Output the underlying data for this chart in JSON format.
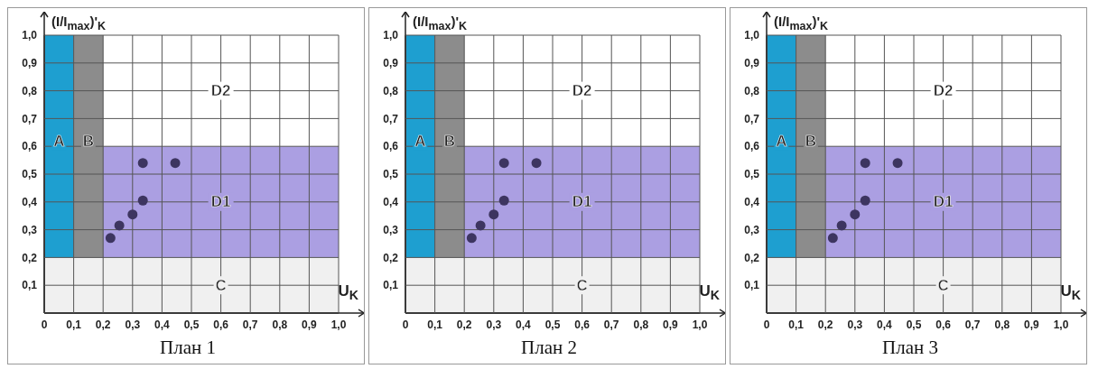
{
  "chart_data": [
    {
      "type": "scatter",
      "title": "План 1",
      "xlabel": "U$_{K}$",
      "ylabel": "(I/I$_{max}$)'$_{K}$",
      "x": [
        0.225,
        0.255,
        0.3,
        0.335,
        0.335,
        0.445
      ],
      "series": [
        {
          "color": "#3d3560",
          "values": [
            0.27,
            0.315,
            0.355,
            0.405,
            0.54,
            0.54
          ]
        }
      ],
      "marker": "circle",
      "xlim": [
        0,
        1
      ],
      "ylim": [
        0,
        1
      ],
      "xticks": [
        {
          "value": 0,
          "label": "0"
        },
        {
          "value": 0.1,
          "label": "0,1"
        },
        {
          "value": 0.2,
          "label": "0,2"
        },
        {
          "value": 0.3,
          "label": "0,3"
        },
        {
          "value": 0.4,
          "label": "0,4"
        },
        {
          "value": 0.5,
          "label": "0,5"
        },
        {
          "value": 0.6,
          "label": "0,6"
        },
        {
          "value": 0.7,
          "label": "0,7"
        },
        {
          "value": 0.8,
          "label": "0,8"
        },
        {
          "value": 0.9,
          "label": "0,9"
        },
        {
          "value": 1,
          "label": "1,0"
        }
      ],
      "yticks": [
        {
          "value": 0,
          "label": null
        },
        {
          "value": 0.1,
          "label": "0,1"
        },
        {
          "value": 0.2,
          "label": "0,2"
        },
        {
          "value": 0.3,
          "label": "0,3"
        },
        {
          "value": 0.4,
          "label": "0,4"
        },
        {
          "value": 0.5,
          "label": "0,5"
        },
        {
          "value": 0.6,
          "label": "0,6"
        },
        {
          "value": 0.7,
          "label": "0,7"
        },
        {
          "value": 0.8,
          "label": "0,8"
        },
        {
          "value": 0.9,
          "label": "0,9"
        },
        {
          "value": 1,
          "label": "1,0"
        }
      ],
      "grid": true,
      "annotations": [
        "D2"
      ],
      "bands": [
        {
          "axis": "y",
          "from": 0.2,
          "to": 0.6,
          "label": "D1",
          "color": "#ab9fe2"
        },
        {
          "axis": "x",
          "from": 0,
          "to": 0.1,
          "label": "A",
          "color": "#1e9fd0"
        },
        {
          "axis": "x",
          "from": 0.1,
          "to": 0.2,
          "label": "B",
          "color": "#8c8c8c"
        },
        {
          "axis": "y",
          "from": 0,
          "to": 0.2,
          "label": "C",
          "color": "#f0f0f0"
        }
      ]
    },
    {
      "type": "scatter",
      "title": "План 2",
      "xlabel": "U$_{K}$",
      "ylabel": "(I/I$_{max}$)'$_{K}$",
      "x": [
        0.225,
        0.255,
        0.3,
        0.335,
        0.335,
        0.445
      ],
      "series": [
        {
          "color": "#3d3560",
          "values": [
            0.27,
            0.315,
            0.355,
            0.405,
            0.54,
            0.54
          ]
        }
      ],
      "marker": "circle",
      "xlim": [
        0,
        1
      ],
      "ylim": [
        0,
        1
      ],
      "xticks": [
        {
          "value": 0,
          "label": "0"
        },
        {
          "value": 0.1,
          "label": "0,1"
        },
        {
          "value": 0.2,
          "label": "0,2"
        },
        {
          "value": 0.3,
          "label": "0,3"
        },
        {
          "value": 0.4,
          "label": "0,4"
        },
        {
          "value": 0.5,
          "label": "0,5"
        },
        {
          "value": 0.6,
          "label": "0,6"
        },
        {
          "value": 0.7,
          "label": "0,7"
        },
        {
          "value": 0.8,
          "label": "0,8"
        },
        {
          "value": 0.9,
          "label": "0,9"
        },
        {
          "value": 1,
          "label": "1,0"
        }
      ],
      "yticks": [
        {
          "value": 0,
          "label": null
        },
        {
          "value": 0.1,
          "label": "0,1"
        },
        {
          "value": 0.2,
          "label": "0,2"
        },
        {
          "value": 0.3,
          "label": "0,3"
        },
        {
          "value": 0.4,
          "label": "0,4"
        },
        {
          "value": 0.5,
          "label": "0,5"
        },
        {
          "value": 0.6,
          "label": "0,6"
        },
        {
          "value": 0.7,
          "label": "0,7"
        },
        {
          "value": 0.8,
          "label": "0,8"
        },
        {
          "value": 0.9,
          "label": "0,9"
        },
        {
          "value": 1,
          "label": "1,0"
        }
      ],
      "grid": true,
      "annotations": [
        "D2"
      ],
      "bands": [
        {
          "axis": "y",
          "from": 0.2,
          "to": 0.6,
          "label": "D1",
          "color": "#ab9fe2"
        },
        {
          "axis": "x",
          "from": 0,
          "to": 0.1,
          "label": "A",
          "color": "#1e9fd0"
        },
        {
          "axis": "x",
          "from": 0.1,
          "to": 0.2,
          "label": "B",
          "color": "#8c8c8c"
        },
        {
          "axis": "y",
          "from": 0,
          "to": 0.2,
          "label": "C",
          "color": "#f0f0f0"
        }
      ]
    },
    {
      "type": "scatter",
      "title": "План 3",
      "xlabel": "U$_{K}$",
      "ylabel": "(I/I$_{max}$)'$_{K}$",
      "x": [
        0.225,
        0.255,
        0.3,
        0.335,
        0.335,
        0.445
      ],
      "series": [
        {
          "color": "#3d3560",
          "values": [
            0.27,
            0.315,
            0.355,
            0.405,
            0.54,
            0.54
          ]
        }
      ],
      "marker": "circle",
      "xlim": [
        0,
        1
      ],
      "ylim": [
        0,
        1
      ],
      "xticks": [
        {
          "value": 0,
          "label": "0"
        },
        {
          "value": 0.1,
          "label": "0,1"
        },
        {
          "value": 0.2,
          "label": "0,2"
        },
        {
          "value": 0.3,
          "label": "0,3"
        },
        {
          "value": 0.4,
          "label": "0,4"
        },
        {
          "value": 0.5,
          "label": "0,5"
        },
        {
          "value": 0.6,
          "label": "0,6"
        },
        {
          "value": 0.7,
          "label": "0,7"
        },
        {
          "value": 0.8,
          "label": "0,8"
        },
        {
          "value": 0.9,
          "label": "0,9"
        },
        {
          "value": 1,
          "label": "1,0"
        }
      ],
      "yticks": [
        {
          "value": 0,
          "label": null
        },
        {
          "value": 0.1,
          "label": "0,1"
        },
        {
          "value": 0.2,
          "label": "0,2"
        },
        {
          "value": 0.3,
          "label": "0,3"
        },
        {
          "value": 0.4,
          "label": "0,4"
        },
        {
          "value": 0.5,
          "label": "0,5"
        },
        {
          "value": 0.6,
          "label": "0,6"
        },
        {
          "value": 0.7,
          "label": "0,7"
        },
        {
          "value": 0.8,
          "label": "0,8"
        },
        {
          "value": 0.9,
          "label": "0,9"
        },
        {
          "value": 1,
          "label": "1,0"
        }
      ],
      "grid": true,
      "annotations": [
        "D2"
      ],
      "bands": [
        {
          "axis": "y",
          "from": 0.2,
          "to": 0.6,
          "label": "D1",
          "color": "#ab9fe2"
        },
        {
          "axis": "x",
          "from": 0,
          "to": 0.1,
          "label": "A",
          "color": "#1e9fd0"
        },
        {
          "axis": "x",
          "from": 0.1,
          "to": 0.2,
          "label": "B",
          "color": "#8c8c8c"
        },
        {
          "axis": "y",
          "from": 0,
          "to": 0.2,
          "label": "C",
          "color": "#f0f0f0"
        }
      ]
    }
  ]
}
